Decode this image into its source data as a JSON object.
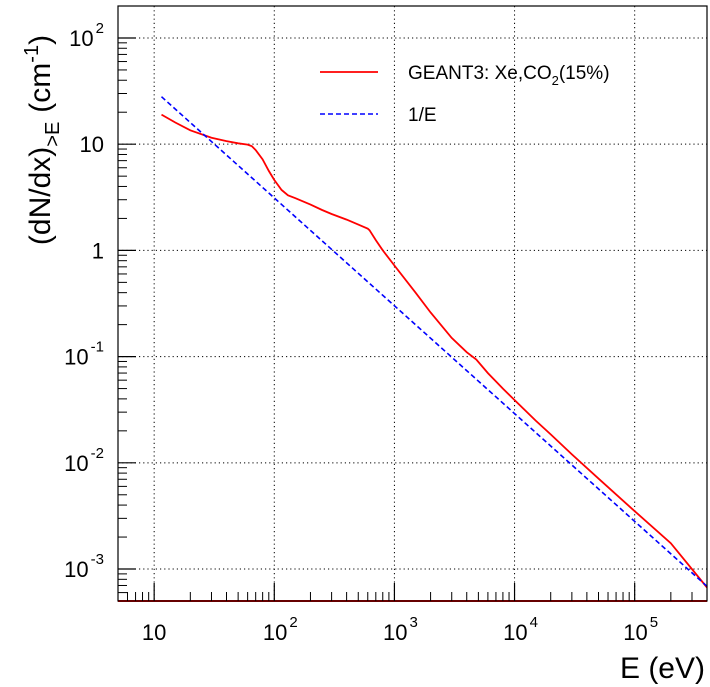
{
  "chart_data": {
    "type": "line",
    "xscale": "log",
    "yscale": "log",
    "xlim": [
      5,
      400000
    ],
    "ylim": [
      0.0005,
      200
    ],
    "grid": true,
    "xlabel": "E (eV)",
    "ylabel": {
      "main": "(dN/dx)",
      "subscript": ">E",
      "unit_prefix": "(cm",
      "unit_exponent": "-1",
      "unit_suffix": ")"
    },
    "x_ticks": [
      {
        "value": 10,
        "base": "10",
        "exp": ""
      },
      {
        "value": 100,
        "base": "10",
        "exp": "2"
      },
      {
        "value": 1000,
        "base": "10",
        "exp": "3"
      },
      {
        "value": 10000,
        "base": "10",
        "exp": "4"
      },
      {
        "value": 100000,
        "base": "10",
        "exp": "5"
      }
    ],
    "y_ticks": [
      {
        "value": 0.001,
        "base": "10",
        "exp": "-3"
      },
      {
        "value": 0.01,
        "base": "10",
        "exp": "-2"
      },
      {
        "value": 0.1,
        "base": "10",
        "exp": "-1"
      },
      {
        "value": 1,
        "base": "1",
        "exp": ""
      },
      {
        "value": 10,
        "base": "10",
        "exp": ""
      },
      {
        "value": 100,
        "base": "10",
        "exp": "2"
      }
    ],
    "legend": {
      "placement": "top-right",
      "entries": [
        {
          "label_main": "GEANT3: Xe,CO",
          "label_sub": "2",
          "label_tail": "(15%)",
          "series": "geant3"
        },
        {
          "label_main": "1/E",
          "label_sub": "",
          "label_tail": "",
          "series": "inverse"
        }
      ]
    },
    "series": [
      {
        "id": "geant3",
        "color": "#ff0000",
        "style": "solid",
        "x": [
          11.5,
          15,
          20,
          30,
          40,
          50,
          60,
          65,
          70,
          80,
          90,
          100,
          115,
          130,
          150,
          200,
          250,
          300,
          400,
          500,
          600,
          620,
          700,
          800,
          1000,
          1500,
          2000,
          3000,
          4000,
          4800,
          6000,
          8000,
          10000,
          15000,
          20000,
          30000,
          50000,
          100000,
          200000,
          400000
        ],
        "y": [
          19,
          16,
          13.5,
          11.5,
          10.7,
          10.2,
          9.9,
          9.6,
          8.8,
          7.2,
          5.6,
          4.6,
          3.7,
          3.3,
          3.1,
          2.7,
          2.4,
          2.2,
          1.95,
          1.75,
          1.6,
          1.55,
          1.25,
          1.0,
          0.72,
          0.4,
          0.26,
          0.15,
          0.11,
          0.094,
          0.07,
          0.05,
          0.039,
          0.025,
          0.0185,
          0.012,
          0.0071,
          0.0035,
          0.00175,
          0.00067
        ]
      },
      {
        "id": "inverse",
        "color": "#0000ff",
        "style": "dashed",
        "x": [
          11.5,
          400000
        ],
        "y": [
          28,
          0.000688
        ]
      }
    ]
  }
}
